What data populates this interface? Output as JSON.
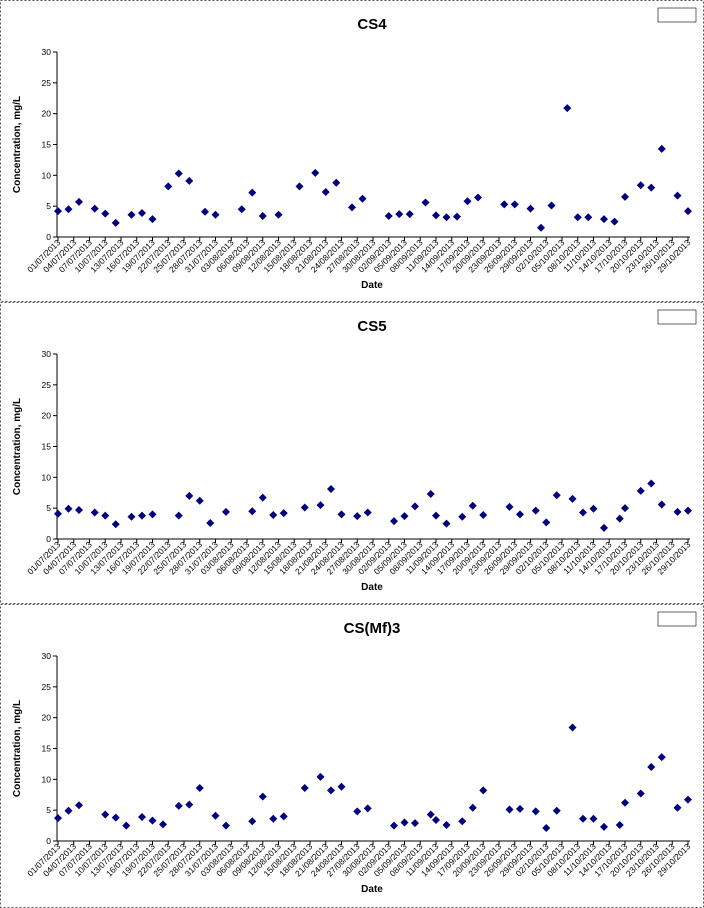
{
  "chart_data": [
    {
      "type": "scatter",
      "title": "CS4",
      "x_label": "Date",
      "y_label": "Concentration, mg/L",
      "color": "#000080",
      "xlim": [
        "01/07/2013",
        "29/10/2013"
      ],
      "ylim": [
        0,
        30
      ],
      "yticks": [
        0,
        5,
        10,
        15,
        20,
        25,
        30
      ],
      "xticks": [
        "01/07/2013",
        "04/07/2013",
        "07/07/2013",
        "10/07/2013",
        "13/07/2013",
        "16/07/2013",
        "19/07/2013",
        "22/07/2013",
        "25/07/2013",
        "28/07/2013",
        "31/07/2013",
        "03/08/2013",
        "06/08/2013",
        "09/08/2013",
        "12/08/2013",
        "15/08/2013",
        "18/08/2013",
        "21/08/2013",
        "24/08/2013",
        "27/08/2013",
        "30/08/2013",
        "02/09/2013",
        "05/09/2013",
        "08/09/2013",
        "11/09/2013",
        "14/09/2013",
        "17/09/2013",
        "20/09/2013",
        "23/09/2013",
        "26/09/2013",
        "29/09/2013",
        "02/10/2013",
        "05/10/2013",
        "08/10/2013",
        "11/10/2013",
        "14/10/2013",
        "17/10/2013",
        "20/10/2013",
        "23/10/2013",
        "26/10/2013",
        "29/10/2013"
      ],
      "x": [
        "01/07/2013",
        "03/07/2013",
        "05/07/2013",
        "08/07/2013",
        "10/07/2013",
        "12/07/2013",
        "15/07/2013",
        "17/07/2013",
        "19/07/2013",
        "22/07/2013",
        "24/07/2013",
        "26/07/2013",
        "29/07/2013",
        "31/07/2013",
        "05/08/2013",
        "07/08/2013",
        "09/08/2013",
        "12/08/2013",
        "16/08/2013",
        "19/08/2013",
        "21/08/2013",
        "23/08/2013",
        "26/08/2013",
        "28/08/2013",
        "02/09/2013",
        "04/09/2013",
        "06/09/2013",
        "09/09/2013",
        "11/09/2013",
        "13/09/2013",
        "15/09/2013",
        "17/09/2013",
        "19/09/2013",
        "24/09/2013",
        "26/09/2013",
        "29/09/2013",
        "01/10/2013",
        "03/10/2013",
        "06/10/2013",
        "08/10/2013",
        "10/10/2013",
        "13/10/2013",
        "15/10/2013",
        "17/10/2013",
        "20/10/2013",
        "22/10/2013",
        "24/10/2013",
        "27/10/2013",
        "29/10/2013"
      ],
      "values": [
        4.2,
        4.5,
        5.7,
        4.6,
        3.8,
        2.3,
        3.6,
        3.9,
        2.9,
        8.2,
        10.3,
        9.1,
        4.1,
        3.6,
        4.5,
        7.2,
        3.4,
        3.6,
        8.2,
        10.4,
        7.3,
        8.8,
        4.8,
        6.2,
        3.4,
        3.7,
        3.7,
        5.6,
        3.5,
        3.2,
        3.3,
        5.8,
        6.4,
        5.3,
        5.3,
        4.6,
        1.5,
        5.1,
        20.9,
        3.2,
        3.2,
        2.9,
        2.5,
        6.5,
        8.4,
        8.0,
        14.3,
        6.7,
        4.2
      ]
    },
    {
      "type": "scatter",
      "title": "CS5",
      "x_label": "Date",
      "y_label": "Concentration, mg/L",
      "color": "#000080",
      "xlim": [
        "01/07/2013",
        "29/10/2013"
      ],
      "ylim": [
        0,
        30
      ],
      "yticks": [
        0,
        5,
        10,
        15,
        20,
        25,
        30
      ],
      "xticks": [
        "01/07/2013",
        "04/07/2013",
        "07/07/2013",
        "10/07/2013",
        "13/07/2013",
        "16/07/2013",
        "19/07/2013",
        "22/07/2013",
        "25/07/2013",
        "28/07/2013",
        "31/07/2013",
        "03/08/2013",
        "06/08/2013",
        "09/08/2013",
        "12/08/2013",
        "15/08/2013",
        "18/08/2013",
        "21/08/2013",
        "24/08/2013",
        "27/08/2013",
        "30/08/2013",
        "02/09/2013",
        "05/09/2013",
        "08/09/2013",
        "11/09/2013",
        "14/09/2013",
        "17/09/2013",
        "20/09/2013",
        "23/09/2013",
        "26/09/2013",
        "29/09/2013",
        "02/10/2013",
        "05/10/2013",
        "08/10/2013",
        "11/10/2013",
        "14/10/2013",
        "17/10/2013",
        "20/10/2013",
        "23/10/2013",
        "26/10/2013",
        "29/10/2013"
      ],
      "x": [
        "01/07/2013",
        "03/07/2013",
        "05/07/2013",
        "08/07/2013",
        "10/07/2013",
        "12/07/2013",
        "15/07/2013",
        "17/07/2013",
        "19/07/2013",
        "24/07/2013",
        "26/07/2013",
        "28/07/2013",
        "30/07/2013",
        "02/08/2013",
        "07/08/2013",
        "09/08/2013",
        "11/08/2013",
        "13/08/2013",
        "17/08/2013",
        "20/08/2013",
        "22/08/2013",
        "24/08/2013",
        "27/08/2013",
        "29/08/2013",
        "03/09/2013",
        "05/09/2013",
        "07/09/2013",
        "10/09/2013",
        "11/09/2013",
        "13/09/2013",
        "16/09/2013",
        "18/09/2013",
        "20/09/2013",
        "25/09/2013",
        "27/09/2013",
        "30/09/2013",
        "02/10/2013",
        "04/10/2013",
        "07/10/2013",
        "09/10/2013",
        "11/10/2013",
        "13/10/2013",
        "16/10/2013",
        "17/10/2013",
        "20/10/2013",
        "22/10/2013",
        "24/10/2013",
        "27/10/2013",
        "29/10/2013"
      ],
      "values": [
        4.1,
        4.9,
        4.7,
        4.3,
        3.8,
        2.4,
        3.6,
        3.8,
        4.0,
        3.8,
        7.0,
        6.2,
        2.6,
        4.4,
        4.5,
        6.7,
        3.9,
        4.2,
        5.1,
        5.5,
        8.1,
        4.0,
        3.7,
        4.3,
        2.9,
        3.7,
        5.3,
        7.3,
        3.8,
        2.5,
        3.6,
        5.4,
        3.9,
        5.2,
        4.0,
        4.6,
        2.7,
        7.1,
        6.5,
        4.3,
        4.9,
        1.8,
        3.3,
        5.0,
        7.8,
        9.0,
        5.6,
        4.4,
        4.6
      ]
    },
    {
      "type": "scatter",
      "title": "CS(Mf)3",
      "x_label": "Date",
      "y_label": "Concentration, mg/L",
      "color": "#000080",
      "xlim": [
        "01/07/2013",
        "29/10/2013"
      ],
      "ylim": [
        0,
        30
      ],
      "yticks": [
        0,
        5,
        10,
        15,
        20,
        25,
        30
      ],
      "xticks": [
        "01/07/2013",
        "04/07/2013",
        "07/07/2013",
        "10/07/2013",
        "13/07/2013",
        "16/07/2013",
        "19/07/2013",
        "22/07/2013",
        "25/07/2013",
        "28/07/2013",
        "31/07/2013",
        "03/08/2013",
        "06/08/2013",
        "09/08/2013",
        "12/08/2013",
        "15/08/2013",
        "18/08/2013",
        "21/08/2013",
        "24/08/2013",
        "27/08/2013",
        "30/08/2013",
        "02/09/2013",
        "05/09/2013",
        "08/09/2013",
        "11/09/2013",
        "14/09/2013",
        "17/09/2013",
        "20/09/2013",
        "23/09/2013",
        "26/09/2013",
        "29/09/2013",
        "02/10/2013",
        "05/10/2013",
        "08/10/2013",
        "11/10/2013",
        "14/10/2013",
        "17/10/2013",
        "20/10/2013",
        "23/10/2013",
        "26/10/2013",
        "29/10/2013"
      ],
      "x": [
        "01/07/2013",
        "03/07/2013",
        "05/07/2013",
        "10/07/2013",
        "12/07/2013",
        "14/07/2013",
        "17/07/2013",
        "19/07/2013",
        "21/07/2013",
        "24/07/2013",
        "26/07/2013",
        "28/07/2013",
        "31/07/2013",
        "02/08/2013",
        "07/08/2013",
        "09/08/2013",
        "11/08/2013",
        "13/08/2013",
        "17/08/2013",
        "20/08/2013",
        "22/08/2013",
        "24/08/2013",
        "27/08/2013",
        "29/08/2013",
        "03/09/2013",
        "05/09/2013",
        "07/09/2013",
        "10/09/2013",
        "11/09/2013",
        "13/09/2013",
        "16/09/2013",
        "18/09/2013",
        "20/09/2013",
        "25/09/2013",
        "27/09/2013",
        "30/09/2013",
        "02/10/2013",
        "04/10/2013",
        "07/10/2013",
        "09/10/2013",
        "11/10/2013",
        "13/10/2013",
        "16/10/2013",
        "17/10/2013",
        "20/10/2013",
        "22/10/2013",
        "24/10/2013",
        "27/10/2013",
        "29/10/2013"
      ],
      "values": [
        3.7,
        4.9,
        5.8,
        4.3,
        3.8,
        2.5,
        3.9,
        3.3,
        2.7,
        5.7,
        5.9,
        8.6,
        4.1,
        2.5,
        3.2,
        7.2,
        3.6,
        4.0,
        8.6,
        10.4,
        8.2,
        8.8,
        4.8,
        5.3,
        2.5,
        3.0,
        2.9,
        4.3,
        3.4,
        2.6,
        3.2,
        5.4,
        8.2,
        5.1,
        5.2,
        4.8,
        2.1,
        4.9,
        18.4,
        3.6,
        3.6,
        2.3,
        2.6,
        6.2,
        7.7,
        12.0,
        13.6,
        5.4,
        6.7
      ]
    }
  ]
}
